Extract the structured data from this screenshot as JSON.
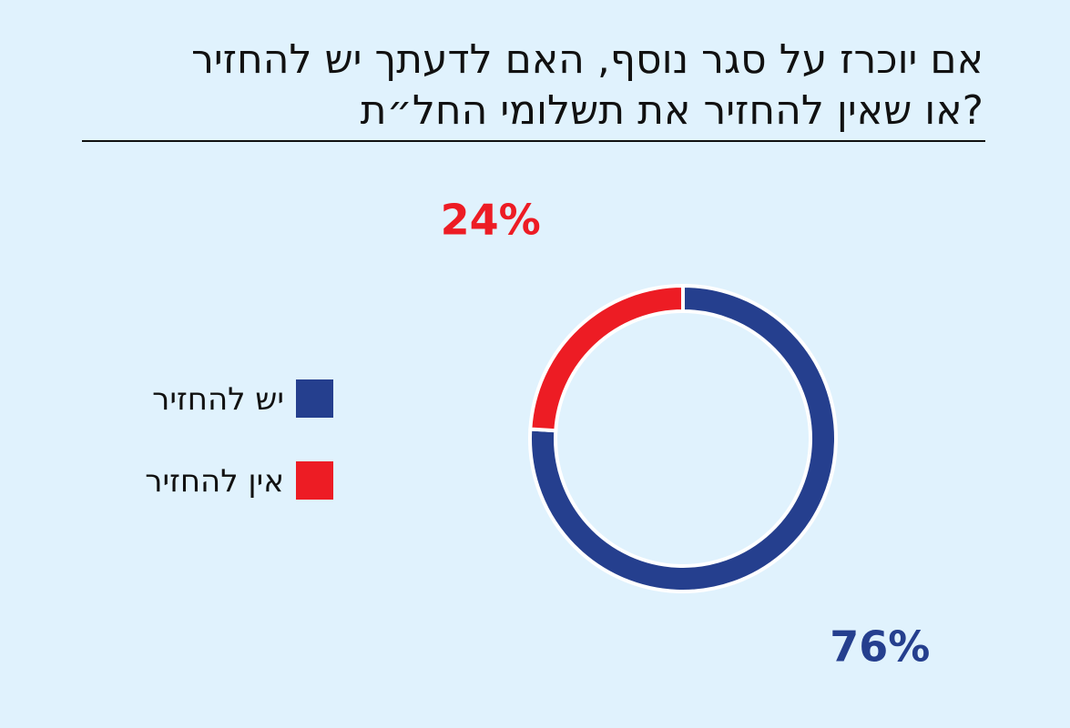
{
  "chart_data": {
    "type": "donut",
    "title": [
      "אם יוכרז על סגר נוסף, האם לדעתך יש להחזיר",
      "או שאין להחזיר את תשלומי החל״ת?"
    ],
    "categories": [
      "יש להחזיר",
      "אין להחזיר"
    ],
    "values": [
      76,
      24
    ],
    "value_labels": [
      "76%",
      "24%"
    ],
    "colors": [
      "#253f8e",
      "#ed1c24"
    ],
    "legend": "left"
  }
}
